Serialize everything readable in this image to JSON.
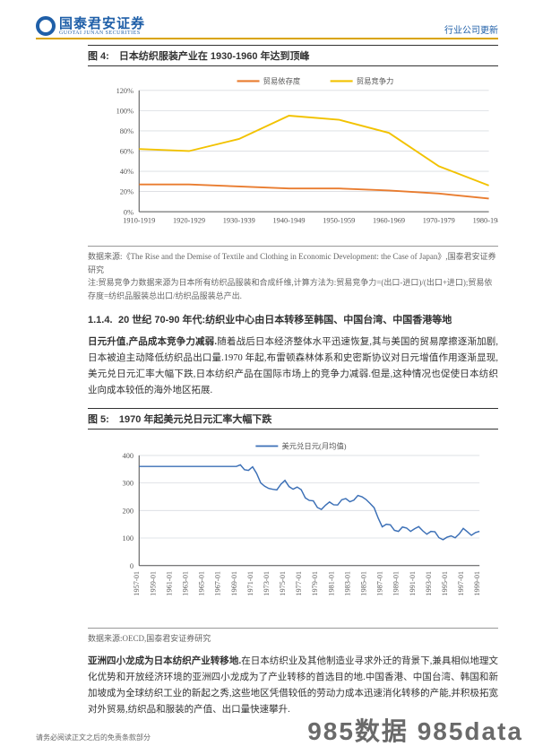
{
  "header": {
    "logo_cn": "国泰君安证券",
    "logo_en": "GUOTAI JUNAN SECURITIES",
    "right": "行业公司更新"
  },
  "fig4": {
    "title": "图 4:　日本纺织服装产业在 1930-1960 年达到顶峰",
    "legend": [
      "贸易依存度",
      "贸易竞争力"
    ],
    "legend_colors": [
      "#e97c2f",
      "#f2c200"
    ],
    "categories": [
      "1910-1919",
      "1920-1929",
      "1930-1939",
      "1940-1949",
      "1950-1959",
      "1960-1969",
      "1970-1979",
      "1980-1989"
    ],
    "ylabel_ticks": [
      "0%",
      "20%",
      "40%",
      "60%",
      "80%",
      "100%",
      "120%"
    ],
    "ylim": [
      0,
      120
    ],
    "series1": [
      27,
      27,
      25,
      23,
      23,
      21,
      18,
      13
    ],
    "series2": [
      62,
      60,
      72,
      95,
      91,
      78,
      45,
      26
    ],
    "grid_color": "#d9dce0",
    "axis_color": "#555555",
    "bg": "#ffffff",
    "font_size": 8,
    "source": "数据来源:《The Rise and the Demise of Textile and Clothing in Economic Development: the Case of Japan》,国泰君安证券研究",
    "note": "注:贸易竞争力数据来源为日本所有纺织品服装和合成纤维,计算方法为:贸易竞争力=(出口-进口)/(出口+进口);贸易依存度=纺织品服装总出口/纺织品服装总产出."
  },
  "section": {
    "num": "1.1.4.",
    "title": "20 世纪 70-90 年代:纺织业中心由日本转移至韩国、中国台湾、中国香港等地"
  },
  "para1": {
    "lead": "日元升值,产品成本竞争力减弱.",
    "body": "随着战后日本经济整体水平迅速恢复,其与美国的贸易摩擦逐渐加剧,日本被迫主动降低纺织品出口量.1970 年起,布雷顿森林体系和史密斯协议对日元增值作用逐渐显现,美元兑日元汇率大幅下跌,日本纺织产品在国际市场上的竞争力减弱.但是,这种情况也促使日本纺织业向成本较低的海外地区拓展."
  },
  "fig5": {
    "title": "图 5:　1970 年起美元兑日元汇率大幅下跌",
    "legend": "美元兑日元(月均值)",
    "line_color": "#3b6fb6",
    "categories": [
      "1957-01",
      "1959-01",
      "1961-01",
      "1963-01",
      "1965-01",
      "1967-01",
      "1969-01",
      "1971-01",
      "1973-01",
      "1975-01",
      "1977-01",
      "1979-01",
      "1981-01",
      "1983-01",
      "1985-01",
      "1987-01",
      "1989-01",
      "1991-01",
      "1993-01",
      "1995-01",
      "1997-01",
      "1999-01"
    ],
    "ylabel_ticks": [
      "0",
      "100",
      "200",
      "300",
      "400"
    ],
    "ylim": [
      0,
      400
    ],
    "values": [
      360,
      360,
      360,
      360,
      360,
      360,
      360,
      350,
      270,
      300,
      270,
      210,
      225,
      240,
      250,
      150,
      130,
      135,
      120,
      95,
      125,
      115
    ],
    "grid_color": "#d9dce0",
    "axis_color": "#555555",
    "source": "数据来源:OECD,国泰君安证券研究"
  },
  "para2": {
    "lead": "亚洲四小龙成为日本纺织产业转移地.",
    "body": "在日本纺织业及其他制造业寻求外迁的背景下,兼具相似地理文化优势和开放经济环境的亚洲四小龙成为了产业转移的首选目的地.中国香港、中国台湾、韩国和新加坡成为全球纺织工业的新起之秀,这些地区凭借较低的劳动力成本迅速消化转移的产能,并积极拓宽对外贸易,纺织品和服装的产值、出口量快速攀升."
  },
  "footer": "请务必阅读正文之后的免责条款部分",
  "watermark": "985数据 985data"
}
